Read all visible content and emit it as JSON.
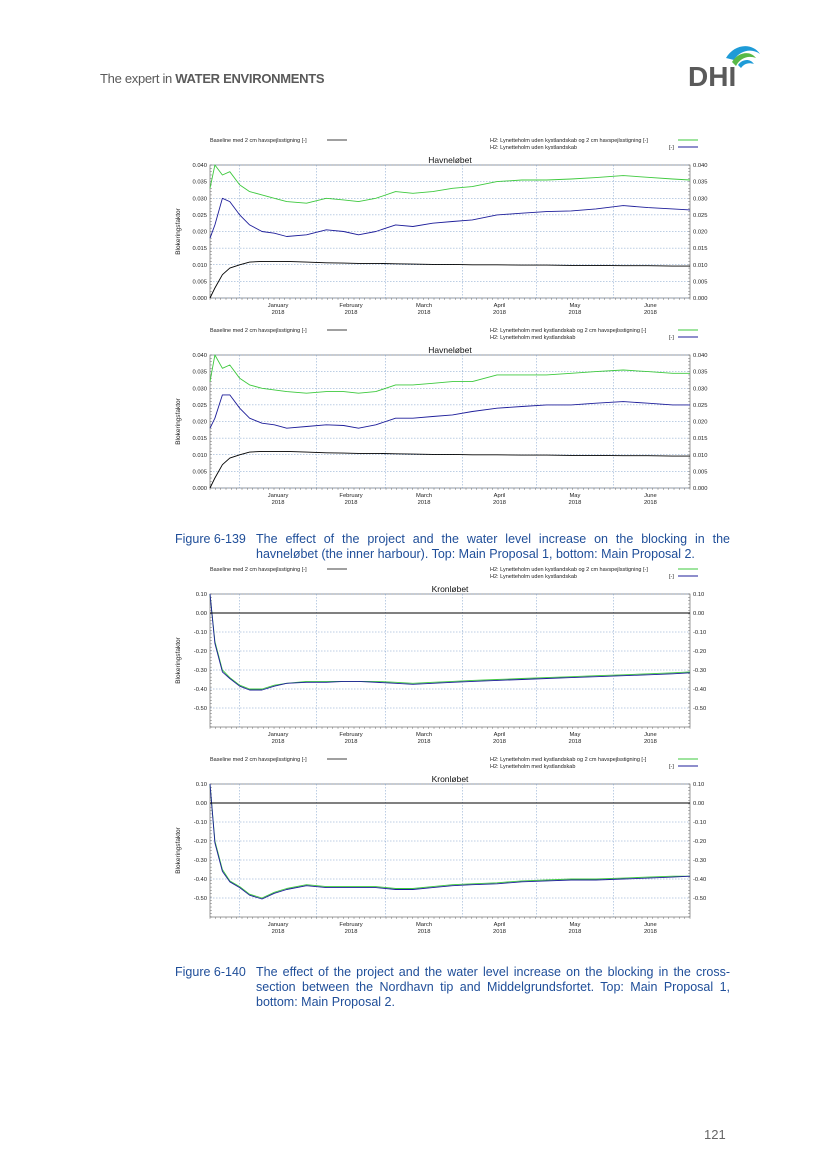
{
  "header": {
    "tagline_prefix": "The expert in ",
    "tagline_bold": "WATER ENVIRONMENTS",
    "logo_text": "DHI"
  },
  "legend_texts": {
    "baseline": "Baseline med 2 cm havspejlsstigning [-]",
    "mp1_a": "H2: Lynetteholm uden kystlandskab og 2 cm havspejlsstigning [-]",
    "mp1_b": "H2: Lynetteholm uden kystlandskab",
    "mp2_a": "H2: Lynetteholm med kystlandskab og 2 cm havspejlsstigning [-]",
    "mp2_b": "H2: Lynetteholm med kystlandskab",
    "unit": "[-]"
  },
  "colors": {
    "green": "#3ec93e",
    "blue": "#1e1e9a",
    "black": "#000000",
    "grid": "#7a9cc8"
  },
  "chart_data": [
    {
      "type": "line",
      "title": "Havneløbet",
      "ylabel": "Blokeringsfaktor",
      "ylim": [
        0,
        0.04
      ],
      "yticks": [
        "0.000",
        "0.005",
        "0.010",
        "0.015",
        "0.020",
        "0.025",
        "0.030",
        "0.035",
        "0.040"
      ],
      "xlim": [
        "2017-12-20",
        "2018-07-02"
      ],
      "xticks": [
        {
          "m": "January",
          "y": "2018"
        },
        {
          "m": "February",
          "y": "2018"
        },
        {
          "m": "March",
          "y": "2018"
        },
        {
          "m": "April",
          "y": "2018"
        },
        {
          "m": "May",
          "y": "2018"
        },
        {
          "m": "June",
          "y": "2018"
        }
      ],
      "x": [
        "2017-12-20",
        "2017-12-22",
        "2017-12-25",
        "2017-12-28",
        "2018-01-01",
        "2018-01-05",
        "2018-01-10",
        "2018-01-15",
        "2018-01-20",
        "2018-01-28",
        "2018-02-05",
        "2018-02-12",
        "2018-02-18",
        "2018-02-25",
        "2018-03-05",
        "2018-03-12",
        "2018-03-20",
        "2018-03-28",
        "2018-04-05",
        "2018-04-15",
        "2018-04-25",
        "2018-05-05",
        "2018-05-15",
        "2018-05-25",
        "2018-06-05",
        "2018-06-15",
        "2018-06-25",
        "2018-07-02"
      ],
      "series": [
        {
          "name": "H2: Lynetteholm uden kystlandskab og 2 cm havspejlsstigning [-]",
          "color": "green",
          "values": [
            0.033,
            0.04,
            0.037,
            0.038,
            0.034,
            0.032,
            0.031,
            0.03,
            0.029,
            0.0285,
            0.03,
            0.0295,
            0.029,
            0.03,
            0.032,
            0.0315,
            0.032,
            0.033,
            0.0335,
            0.035,
            0.0355,
            0.0355,
            0.0358,
            0.0362,
            0.0368,
            0.0363,
            0.0358,
            0.0355
          ]
        },
        {
          "name": "H2: Lynetteholm uden kystlandskab",
          "color": "blue",
          "values": [
            0.018,
            0.022,
            0.03,
            0.029,
            0.025,
            0.022,
            0.02,
            0.0195,
            0.0185,
            0.019,
            0.0205,
            0.02,
            0.019,
            0.02,
            0.022,
            0.0215,
            0.0225,
            0.023,
            0.0235,
            0.025,
            0.0255,
            0.026,
            0.0262,
            0.0268,
            0.0278,
            0.0272,
            0.0268,
            0.0265
          ]
        },
        {
          "name": "Baseline med 2 cm havspejlsstigning [-]",
          "color": "black",
          "values": [
            0.0,
            0.003,
            0.007,
            0.009,
            0.01,
            0.0108,
            0.011,
            0.011,
            0.011,
            0.0108,
            0.0106,
            0.0105,
            0.0104,
            0.0104,
            0.0103,
            0.0102,
            0.0101,
            0.0101,
            0.01,
            0.01,
            0.0099,
            0.0099,
            0.0098,
            0.0098,
            0.0097,
            0.0097,
            0.0096,
            0.0096
          ]
        }
      ]
    },
    {
      "type": "line",
      "title": "Havneløbet",
      "ylabel": "Blokeringsfaktor",
      "ylim": [
        0,
        0.04
      ],
      "yticks": [
        "0.000",
        "0.005",
        "0.010",
        "0.015",
        "0.020",
        "0.025",
        "0.030",
        "0.035",
        "0.040"
      ],
      "xlim": [
        "2017-12-20",
        "2018-07-02"
      ],
      "xticks": [
        {
          "m": "January",
          "y": "2018"
        },
        {
          "m": "February",
          "y": "2018"
        },
        {
          "m": "March",
          "y": "2018"
        },
        {
          "m": "April",
          "y": "2018"
        },
        {
          "m": "May",
          "y": "2018"
        },
        {
          "m": "June",
          "y": "2018"
        }
      ],
      "x": [
        "2017-12-20",
        "2017-12-22",
        "2017-12-25",
        "2017-12-28",
        "2018-01-01",
        "2018-01-05",
        "2018-01-10",
        "2018-01-15",
        "2018-01-20",
        "2018-01-28",
        "2018-02-05",
        "2018-02-12",
        "2018-02-18",
        "2018-02-25",
        "2018-03-05",
        "2018-03-12",
        "2018-03-20",
        "2018-03-28",
        "2018-04-05",
        "2018-04-15",
        "2018-04-25",
        "2018-05-05",
        "2018-05-15",
        "2018-05-25",
        "2018-06-05",
        "2018-06-15",
        "2018-06-25",
        "2018-07-02"
      ],
      "series": [
        {
          "name": "H2: Lynetteholm med kystlandskab og 2 cm havspejlsstigning [-]",
          "color": "green",
          "values": [
            0.032,
            0.04,
            0.036,
            0.037,
            0.033,
            0.031,
            0.03,
            0.0295,
            0.029,
            0.0285,
            0.029,
            0.029,
            0.0285,
            0.029,
            0.031,
            0.031,
            0.0315,
            0.032,
            0.032,
            0.034,
            0.034,
            0.034,
            0.0345,
            0.035,
            0.0355,
            0.035,
            0.0345,
            0.0345
          ]
        },
        {
          "name": "H2: Lynetteholm med kystlandskab",
          "color": "blue",
          "values": [
            0.018,
            0.021,
            0.028,
            0.028,
            0.024,
            0.021,
            0.0195,
            0.019,
            0.018,
            0.0185,
            0.019,
            0.0188,
            0.018,
            0.019,
            0.021,
            0.021,
            0.0215,
            0.022,
            0.023,
            0.024,
            0.0245,
            0.025,
            0.025,
            0.0255,
            0.026,
            0.0255,
            0.025,
            0.025
          ]
        },
        {
          "name": "Baseline med 2 cm havspejlsstigning [-]",
          "color": "black",
          "values": [
            0.0,
            0.003,
            0.007,
            0.009,
            0.01,
            0.0108,
            0.011,
            0.011,
            0.011,
            0.0108,
            0.0106,
            0.0105,
            0.0104,
            0.0104,
            0.0103,
            0.0102,
            0.0101,
            0.0101,
            0.01,
            0.01,
            0.0099,
            0.0099,
            0.0098,
            0.0098,
            0.0097,
            0.0097,
            0.0096,
            0.0096
          ]
        }
      ]
    },
    {
      "type": "line",
      "title": "Kronløbet",
      "ylabel": "Blokeringsfaktor",
      "ylim": [
        -0.6,
        0.1
      ],
      "yticks": [
        "-0.50",
        "-0.40",
        "-0.30",
        "-0.20",
        "-0.10",
        "0.00",
        "0.10"
      ],
      "xlim": [
        "2017-12-20",
        "2018-07-02"
      ],
      "xticks": [
        {
          "m": "January",
          "y": "2018"
        },
        {
          "m": "February",
          "y": "2018"
        },
        {
          "m": "March",
          "y": "2018"
        },
        {
          "m": "April",
          "y": "2018"
        },
        {
          "m": "May",
          "y": "2018"
        },
        {
          "m": "June",
          "y": "2018"
        }
      ],
      "x": [
        "2017-12-20",
        "2017-12-22",
        "2017-12-25",
        "2017-12-28",
        "2018-01-01",
        "2018-01-05",
        "2018-01-10",
        "2018-01-15",
        "2018-01-20",
        "2018-01-28",
        "2018-02-05",
        "2018-02-12",
        "2018-02-18",
        "2018-02-25",
        "2018-03-05",
        "2018-03-12",
        "2018-03-20",
        "2018-03-28",
        "2018-04-05",
        "2018-04-15",
        "2018-04-25",
        "2018-05-05",
        "2018-05-15",
        "2018-05-25",
        "2018-06-05",
        "2018-06-15",
        "2018-06-25",
        "2018-07-02"
      ],
      "series": [
        {
          "name": "H2: Lynetteholm uden kystlandskab og 2 cm havspejlsstigning [-]",
          "color": "green",
          "values": [
            0.1,
            -0.15,
            -0.3,
            -0.34,
            -0.38,
            -0.4,
            -0.4,
            -0.38,
            -0.37,
            -0.36,
            -0.36,
            -0.36,
            -0.36,
            -0.36,
            -0.365,
            -0.37,
            -0.365,
            -0.36,
            -0.355,
            -0.35,
            -0.345,
            -0.34,
            -0.335,
            -0.33,
            -0.325,
            -0.32,
            -0.315,
            -0.31
          ]
        },
        {
          "name": "H2: Lynetteholm uden kystlandskab",
          "color": "blue",
          "values": [
            0.1,
            -0.16,
            -0.31,
            -0.345,
            -0.385,
            -0.405,
            -0.405,
            -0.385,
            -0.37,
            -0.365,
            -0.365,
            -0.36,
            -0.36,
            -0.365,
            -0.37,
            -0.375,
            -0.37,
            -0.365,
            -0.36,
            -0.355,
            -0.35,
            -0.345,
            -0.34,
            -0.335,
            -0.33,
            -0.325,
            -0.32,
            -0.315
          ]
        },
        {
          "name": "Baseline med 2 cm havspejlsstigning [-]",
          "color": "black",
          "values": [
            0,
            0,
            0,
            0,
            0,
            0,
            0,
            0,
            0,
            0,
            0,
            0,
            0,
            0,
            0,
            0,
            0,
            0,
            0,
            0,
            0,
            0,
            0,
            0,
            0,
            0,
            0,
            0
          ]
        }
      ]
    },
    {
      "type": "line",
      "title": "Kronløbet",
      "ylabel": "Blokeringsfaktor",
      "ylim": [
        -0.6,
        0.1
      ],
      "yticks": [
        "-0.50",
        "-0.40",
        "-0.30",
        "-0.20",
        "-0.10",
        "0.00",
        "0.10"
      ],
      "xlim": [
        "2017-12-20",
        "2018-07-02"
      ],
      "xticks": [
        {
          "m": "January",
          "y": "2018"
        },
        {
          "m": "February",
          "y": "2018"
        },
        {
          "m": "March",
          "y": "2018"
        },
        {
          "m": "April",
          "y": "2018"
        },
        {
          "m": "May",
          "y": "2018"
        },
        {
          "m": "June",
          "y": "2018"
        }
      ],
      "x": [
        "2017-12-20",
        "2017-12-22",
        "2017-12-25",
        "2017-12-28",
        "2018-01-01",
        "2018-01-05",
        "2018-01-10",
        "2018-01-15",
        "2018-01-20",
        "2018-01-28",
        "2018-02-05",
        "2018-02-12",
        "2018-02-18",
        "2018-02-25",
        "2018-03-05",
        "2018-03-12",
        "2018-03-20",
        "2018-03-28",
        "2018-04-05",
        "2018-04-15",
        "2018-04-25",
        "2018-05-05",
        "2018-05-15",
        "2018-05-25",
        "2018-06-05",
        "2018-06-15",
        "2018-06-25",
        "2018-07-02"
      ],
      "series": [
        {
          "name": "H2: Lynetteholm med kystlandskab og 2 cm havspejlsstigning [-]",
          "color": "green",
          "values": [
            0.1,
            -0.2,
            -0.35,
            -0.41,
            -0.44,
            -0.48,
            -0.5,
            -0.47,
            -0.45,
            -0.43,
            -0.44,
            -0.44,
            -0.44,
            -0.44,
            -0.45,
            -0.45,
            -0.44,
            -0.43,
            -0.425,
            -0.42,
            -0.41,
            -0.405,
            -0.4,
            -0.4,
            -0.395,
            -0.39,
            -0.385,
            -0.385
          ]
        },
        {
          "name": "H2: Lynetteholm med kystlandskab",
          "color": "blue",
          "values": [
            0.1,
            -0.21,
            -0.36,
            -0.415,
            -0.445,
            -0.485,
            -0.505,
            -0.475,
            -0.455,
            -0.435,
            -0.445,
            -0.445,
            -0.445,
            -0.445,
            -0.455,
            -0.455,
            -0.445,
            -0.435,
            -0.43,
            -0.425,
            -0.415,
            -0.41,
            -0.405,
            -0.405,
            -0.4,
            -0.395,
            -0.39,
            -0.385
          ]
        },
        {
          "name": "Baseline med 2 cm havspejlsstigning [-]",
          "color": "black",
          "values": [
            0,
            0,
            0,
            0,
            0,
            0,
            0,
            0,
            0,
            0,
            0,
            0,
            0,
            0,
            0,
            0,
            0,
            0,
            0,
            0,
            0,
            0,
            0,
            0,
            0,
            0,
            0,
            0
          ]
        }
      ]
    }
  ],
  "captions": [
    {
      "number": "Figure 6-139",
      "text": "The effect of the project and the water level increase on the blocking in the havneløbet (the inner harbour). Top: Main Proposal 1, bottom: Main Proposal 2."
    },
    {
      "number": "Figure 6-140",
      "text": "The effect of the project and the water level increase on the blocking in the cross-section between the Nordhavn tip and Middelgrundsfortet. Top: Main Proposal 1, bottom: Main Proposal 2."
    }
  ],
  "page_number": "121"
}
